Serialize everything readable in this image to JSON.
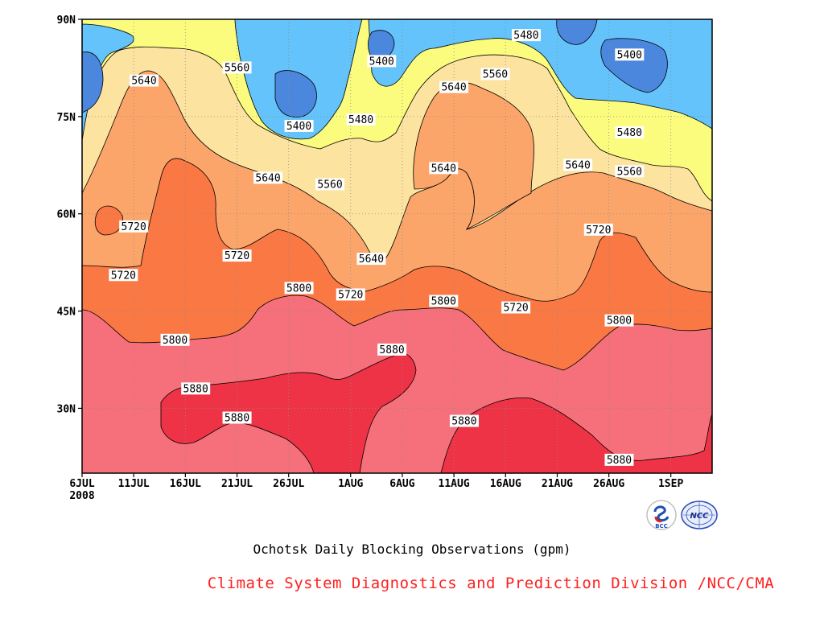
{
  "chart_data": {
    "type": "contour",
    "title": "Ochotsk Daily Blocking Observations (gpm)",
    "credit": "Climate System Diagnostics and Prediction Division /NCC/CMA",
    "x_ticks": [
      "6JUL",
      "11JUL",
      "16JUL",
      "21JUL",
      "26JUL",
      "1AUG",
      "6AUG",
      "11AUG",
      "16AUG",
      "21AUG",
      "26AUG",
      "1SEP"
    ],
    "x_year_label": "2008",
    "y_ticks": [
      "90N",
      "75N",
      "60N",
      "45N",
      "30N"
    ],
    "xlim": [
      "2008-07-06",
      "2008-09-05"
    ],
    "ylim": [
      20,
      90
    ],
    "grid": true,
    "contour_interval": 80,
    "levels": [
      {
        "min": 5320,
        "max": 5400,
        "color": "#4b87dc"
      },
      {
        "min": 5400,
        "max": 5480,
        "color": "#63c3fa"
      },
      {
        "min": 5480,
        "max": 5560,
        "color": "#fbfb7e"
      },
      {
        "min": 5560,
        "max": 5640,
        "color": "#fde3a0"
      },
      {
        "min": 5640,
        "max": 5720,
        "color": "#fca56a"
      },
      {
        "min": 5720,
        "max": 5800,
        "color": "#fa7844"
      },
      {
        "min": 5800,
        "max": 5880,
        "color": "#f5707a"
      },
      {
        "min": 5880,
        "max": 5960,
        "color": "#ef3346"
      }
    ],
    "contour_labels": [
      {
        "text": "5400",
        "date": "2008-08-04",
        "lat": 83.5
      },
      {
        "text": "5480",
        "date": "2008-08-18",
        "lat": 87.5
      },
      {
        "text": "5400",
        "date": "2008-08-28",
        "lat": 84.5
      },
      {
        "text": "5640",
        "date": "2008-07-12",
        "lat": 80.5
      },
      {
        "text": "5560",
        "date": "2008-07-21",
        "lat": 82.5
      },
      {
        "text": "5560",
        "date": "2008-08-15",
        "lat": 81.5
      },
      {
        "text": "5640",
        "date": "2008-08-11",
        "lat": 79.5
      },
      {
        "text": "5400",
        "date": "2008-07-27",
        "lat": 73.5
      },
      {
        "text": "5480",
        "date": "2008-08-02",
        "lat": 74.5
      },
      {
        "text": "5480",
        "date": "2008-08-28",
        "lat": 72.5
      },
      {
        "text": "5640",
        "date": "2008-07-24",
        "lat": 65.5
      },
      {
        "text": "5560",
        "date": "2008-07-30",
        "lat": 64.5
      },
      {
        "text": "5640",
        "date": "2008-08-10",
        "lat": 67.0
      },
      {
        "text": "5640",
        "date": "2008-08-23",
        "lat": 67.5
      },
      {
        "text": "5560",
        "date": "2008-08-28",
        "lat": 66.5
      },
      {
        "text": "5720",
        "date": "2008-07-11",
        "lat": 58.0
      },
      {
        "text": "5720",
        "date": "2008-07-21",
        "lat": 53.5
      },
      {
        "text": "5720",
        "date": "2008-08-25",
        "lat": 57.5
      },
      {
        "text": "5640",
        "date": "2008-08-03",
        "lat": 53.0
      },
      {
        "text": "5720",
        "date": "2008-07-10",
        "lat": 50.5
      },
      {
        "text": "5800",
        "date": "2008-07-27",
        "lat": 48.5
      },
      {
        "text": "5720",
        "date": "2008-08-01",
        "lat": 47.5
      },
      {
        "text": "5800",
        "date": "2008-08-10",
        "lat": 46.5
      },
      {
        "text": "5720",
        "date": "2008-08-17",
        "lat": 45.5
      },
      {
        "text": "5800",
        "date": "2008-08-27",
        "lat": 43.5
      },
      {
        "text": "5800",
        "date": "2008-07-15",
        "lat": 40.5
      },
      {
        "text": "5880",
        "date": "2008-08-05",
        "lat": 39.0
      },
      {
        "text": "5880",
        "date": "2008-07-17",
        "lat": 33.0
      },
      {
        "text": "5880",
        "date": "2008-07-21",
        "lat": 28.5
      },
      {
        "text": "5880",
        "date": "2008-08-12",
        "lat": 28.0
      },
      {
        "text": "5880",
        "date": "2008-08-27",
        "lat": 22.0
      }
    ]
  },
  "logos": {
    "bcc": "BCC",
    "ncc": "NCC"
  }
}
